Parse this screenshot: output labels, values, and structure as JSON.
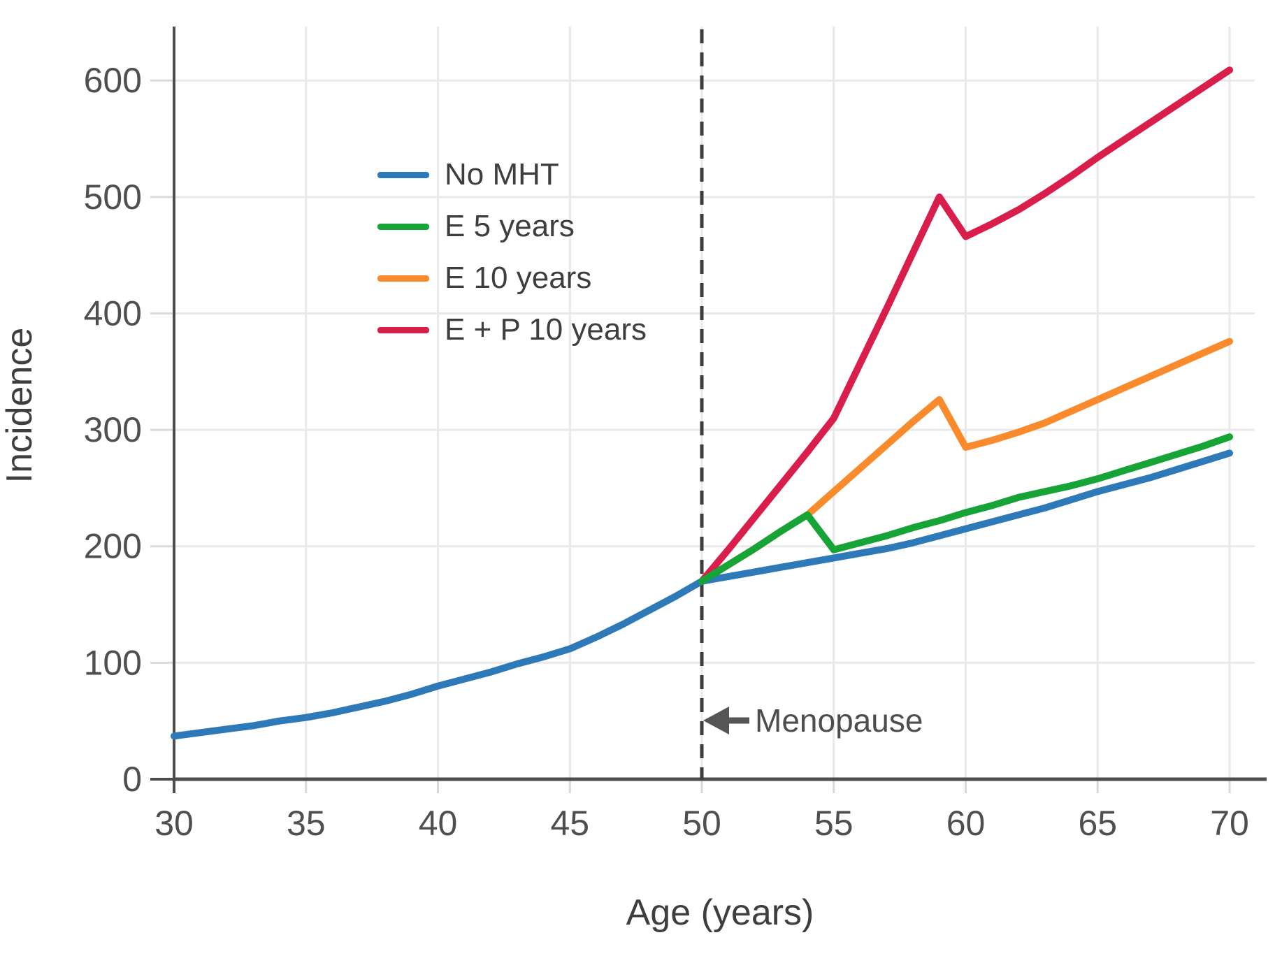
{
  "chart_data": {
    "type": "line",
    "title": "",
    "xlabel": "Age (years)",
    "ylabel": "Incidence",
    "xlim": [
      30,
      70
    ],
    "ylim": [
      0,
      650
    ],
    "x_ticks": [
      30,
      35,
      40,
      45,
      50,
      55,
      60,
      65,
      70
    ],
    "y_ticks": [
      0,
      100,
      200,
      300,
      400,
      500,
      600
    ],
    "grid": true,
    "legend_position": "upper-left-inside",
    "annotation": {
      "text": "Menopause",
      "arrow": "left",
      "x": 50,
      "y": 50
    },
    "menopause_line": {
      "x": 50,
      "style": "dashed",
      "color": "#3d3d3d"
    },
    "series": [
      {
        "name": "No MHT",
        "color": "#2e79b7",
        "points": [
          [
            30,
            37
          ],
          [
            31,
            40
          ],
          [
            32,
            43
          ],
          [
            33,
            46
          ],
          [
            34,
            50
          ],
          [
            35,
            53
          ],
          [
            36,
            57
          ],
          [
            37,
            62
          ],
          [
            38,
            67
          ],
          [
            39,
            73
          ],
          [
            40,
            80
          ],
          [
            41,
            86
          ],
          [
            42,
            92
          ],
          [
            43,
            99
          ],
          [
            44,
            105
          ],
          [
            45,
            112
          ],
          [
            46,
            122
          ],
          [
            47,
            133
          ],
          [
            48,
            145
          ],
          [
            49,
            157
          ],
          [
            50,
            170
          ],
          [
            51,
            174
          ],
          [
            52,
            178
          ],
          [
            53,
            182
          ],
          [
            54,
            186
          ],
          [
            55,
            190
          ],
          [
            56,
            194
          ],
          [
            57,
            198
          ],
          [
            58,
            203
          ],
          [
            59,
            209
          ],
          [
            60,
            215
          ],
          [
            61,
            221
          ],
          [
            62,
            227
          ],
          [
            63,
            233
          ],
          [
            64,
            240
          ],
          [
            65,
            247
          ],
          [
            66,
            253
          ],
          [
            67,
            259
          ],
          [
            68,
            266
          ],
          [
            69,
            273
          ],
          [
            70,
            280
          ]
        ]
      },
      {
        "name": "E 5 years",
        "color": "#17a437",
        "points": [
          [
            50,
            170
          ],
          [
            51,
            184
          ],
          [
            52,
            198
          ],
          [
            53,
            213
          ],
          [
            54,
            227
          ],
          [
            55,
            197
          ],
          [
            56,
            203
          ],
          [
            57,
            209
          ],
          [
            58,
            216
          ],
          [
            59,
            222
          ],
          [
            60,
            229
          ],
          [
            61,
            235
          ],
          [
            62,
            242
          ],
          [
            63,
            247
          ],
          [
            64,
            252
          ],
          [
            65,
            258
          ],
          [
            66,
            265
          ],
          [
            67,
            272
          ],
          [
            68,
            279
          ],
          [
            69,
            286
          ],
          [
            70,
            294
          ]
        ]
      },
      {
        "name": "E 10 years",
        "color": "#fa8b2d",
        "points": [
          [
            50,
            170
          ],
          [
            51,
            184
          ],
          [
            52,
            198
          ],
          [
            53,
            213
          ],
          [
            54,
            227
          ],
          [
            55,
            247
          ],
          [
            56,
            267
          ],
          [
            57,
            287
          ],
          [
            58,
            307
          ],
          [
            59,
            326
          ],
          [
            60,
            285
          ],
          [
            61,
            291
          ],
          [
            62,
            298
          ],
          [
            63,
            306
          ],
          [
            64,
            316
          ],
          [
            65,
            326
          ],
          [
            66,
            336
          ],
          [
            67,
            346
          ],
          [
            68,
            356
          ],
          [
            69,
            366
          ],
          [
            70,
            376
          ]
        ]
      },
      {
        "name": "E + P 10 years",
        "color": "#d91e4b",
        "points": [
          [
            50,
            170
          ],
          [
            51,
            197
          ],
          [
            52,
            225
          ],
          [
            53,
            253
          ],
          [
            54,
            281
          ],
          [
            55,
            310
          ],
          [
            56,
            357
          ],
          [
            57,
            404
          ],
          [
            58,
            452
          ],
          [
            59,
            500
          ],
          [
            60,
            466
          ],
          [
            61,
            477
          ],
          [
            62,
            489
          ],
          [
            63,
            503
          ],
          [
            64,
            518
          ],
          [
            65,
            534
          ],
          [
            66,
            549
          ],
          [
            67,
            564
          ],
          [
            68,
            579
          ],
          [
            69,
            594
          ],
          [
            70,
            609
          ]
        ]
      }
    ]
  }
}
